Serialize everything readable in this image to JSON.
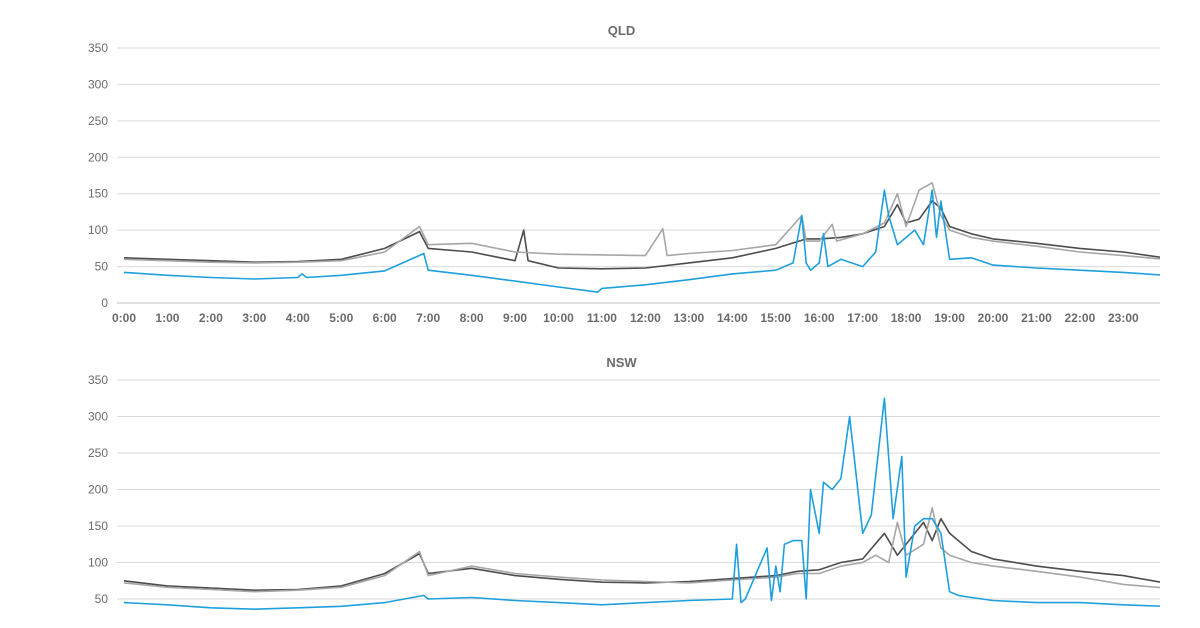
{
  "chart_data": [
    {
      "type": "line",
      "title": "QLD",
      "xlabel": "",
      "ylabel": "",
      "ylim": [
        0,
        350
      ],
      "yticks": [
        0,
        50,
        100,
        150,
        200,
        250,
        300,
        350
      ],
      "categories": [
        "0:00",
        "1:00",
        "2:00",
        "3:00",
        "4:00",
        "5:00",
        "6:00",
        "7:00",
        "8:00",
        "9:00",
        "10:00",
        "11:00",
        "12:00",
        "13:00",
        "14:00",
        "15:00",
        "16:00",
        "17:00",
        "18:00",
        "19:00",
        "20:00",
        "21:00",
        "22:00",
        "23:00"
      ],
      "grid": true,
      "legend": "none",
      "colors": [
        "#4d4d4d",
        "#a6a6a6",
        "#1ea0dc"
      ],
      "series": [
        {
          "x": [
            0,
            1,
            2,
            3,
            4,
            5,
            6,
            6.8,
            7,
            8,
            9,
            9.2,
            9.3,
            10,
            11,
            12,
            13,
            14,
            15,
            15.7,
            16,
            16.5,
            17,
            17.5,
            17.8,
            18,
            18.3,
            18.6,
            18.8,
            19,
            19.5,
            20,
            21,
            22,
            23,
            23.95
          ],
          "values": [
            62,
            60,
            58,
            56,
            57,
            60,
            75,
            98,
            75,
            70,
            58,
            100,
            58,
            48,
            47,
            48,
            55,
            62,
            75,
            88,
            88,
            90,
            95,
            105,
            135,
            110,
            115,
            140,
            130,
            105,
            95,
            88,
            82,
            75,
            70,
            62
          ]
        },
        {
          "x": [
            0,
            1,
            2,
            3,
            4,
            5,
            6,
            6.8,
            7,
            8,
            9,
            10,
            11,
            12,
            12.4,
            12.5,
            13,
            14,
            15,
            15.6,
            15.7,
            16,
            16.3,
            16.4,
            17,
            17.5,
            17.8,
            18,
            18.3,
            18.6,
            18.8,
            19,
            19.5,
            20,
            21,
            22,
            23,
            23.95
          ],
          "values": [
            60,
            58,
            56,
            55,
            56,
            58,
            70,
            105,
            80,
            82,
            70,
            67,
            66,
            65,
            102,
            65,
            68,
            72,
            80,
            120,
            85,
            85,
            108,
            85,
            95,
            110,
            150,
            105,
            155,
            165,
            120,
            100,
            90,
            85,
            78,
            70,
            65,
            60
          ]
        },
        {
          "x": [
            0,
            1,
            2,
            3,
            4,
            4.1,
            4.2,
            5,
            6,
            6.9,
            7,
            8,
            9,
            10,
            10.9,
            11,
            12,
            13,
            14,
            15,
            15.4,
            15.6,
            15.7,
            15.8,
            16,
            16.1,
            16.2,
            16.5,
            17,
            17.3,
            17.5,
            17.6,
            17.8,
            18,
            18.2,
            18.4,
            18.6,
            18.7,
            18.8,
            19,
            19.5,
            20,
            21,
            22,
            23,
            23.95
          ],
          "values": [
            42,
            38,
            35,
            33,
            35,
            40,
            35,
            38,
            44,
            68,
            45,
            38,
            30,
            22,
            15,
            20,
            25,
            32,
            40,
            45,
            55,
            120,
            55,
            45,
            55,
            95,
            50,
            60,
            50,
            70,
            155,
            120,
            80,
            90,
            100,
            80,
            155,
            90,
            140,
            60,
            62,
            52,
            48,
            45,
            42,
            38
          ]
        }
      ]
    },
    {
      "type": "line",
      "title": "NSW",
      "xlabel": "",
      "ylabel": "",
      "ylim": [
        50,
        350
      ],
      "yticks": [
        50,
        100,
        150,
        200,
        250,
        300,
        350
      ],
      "grid": true,
      "legend": "none",
      "colors": [
        "#4d4d4d",
        "#a6a6a6",
        "#1ea0dc"
      ],
      "series": [
        {
          "x": [
            0,
            1,
            2,
            3,
            4,
            5,
            6,
            6.8,
            7,
            8,
            9,
            10,
            11,
            12,
            13,
            14,
            15,
            15.5,
            16,
            16.5,
            17,
            17.5,
            17.8,
            18,
            18.4,
            18.6,
            18.8,
            19,
            19.5,
            20,
            21,
            22,
            23,
            23.95
          ],
          "values": [
            75,
            68,
            65,
            62,
            63,
            68,
            85,
            112,
            85,
            92,
            82,
            77,
            73,
            72,
            74,
            78,
            82,
            88,
            90,
            100,
            105,
            140,
            110,
            125,
            155,
            130,
            160,
            140,
            115,
            105,
            95,
            88,
            82,
            72
          ]
        },
        {
          "x": [
            0,
            1,
            2,
            3,
            4,
            5,
            6,
            6.8,
            7,
            8,
            9,
            10,
            11,
            12,
            13,
            14,
            15,
            15.5,
            16,
            16.5,
            17,
            17.3,
            17.6,
            17.8,
            18,
            18.4,
            18.6,
            18.8,
            19,
            19.5,
            20,
            21,
            22,
            23,
            23.95
          ],
          "values": [
            72,
            66,
            63,
            60,
            62,
            66,
            82,
            115,
            82,
            95,
            85,
            80,
            76,
            74,
            72,
            76,
            80,
            85,
            85,
            95,
            100,
            110,
            100,
            155,
            110,
            125,
            175,
            120,
            110,
            100,
            95,
            88,
            80,
            70,
            65
          ]
        },
        {
          "x": [
            0,
            1,
            2,
            3,
            4,
            5,
            6,
            6.9,
            7,
            8,
            9,
            10,
            11,
            12,
            13,
            14,
            14.1,
            14.2,
            14.3,
            14.8,
            14.9,
            15,
            15.1,
            15.2,
            15.4,
            15.6,
            15.7,
            15.8,
            16,
            16.1,
            16.3,
            16.5,
            16.7,
            17,
            17.2,
            17.5,
            17.7,
            17.9,
            18,
            18.2,
            18.4,
            18.6,
            18.8,
            19,
            19.2,
            19.5,
            20,
            21,
            22,
            23,
            23.95
          ],
          "values": [
            45,
            42,
            38,
            36,
            38,
            40,
            45,
            55,
            50,
            52,
            48,
            45,
            42,
            45,
            48,
            50,
            125,
            45,
            50,
            120,
            48,
            95,
            60,
            125,
            130,
            130,
            50,
            200,
            140,
            210,
            200,
            215,
            300,
            140,
            165,
            325,
            160,
            245,
            80,
            150,
            160,
            160,
            140,
            60,
            55,
            52,
            48,
            45,
            45,
            42,
            40
          ]
        }
      ]
    }
  ]
}
